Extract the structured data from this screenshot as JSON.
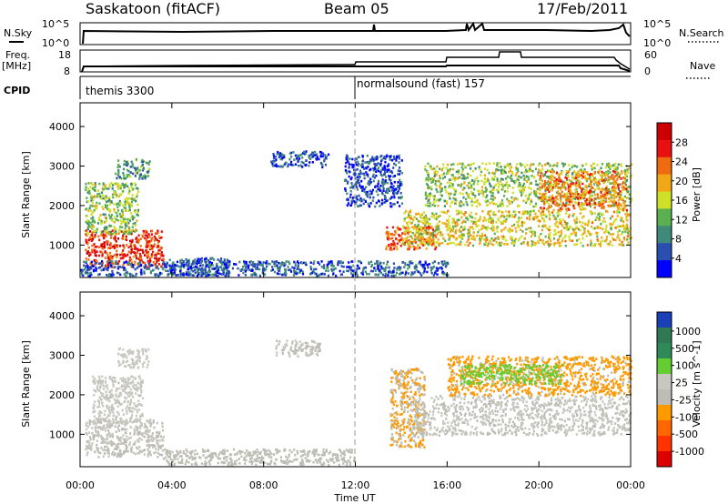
{
  "header": {
    "station": "Saskatoon (fitACF)",
    "beam": "Beam 05",
    "date": "17/Feb/2011"
  },
  "sky_panel": {
    "left_label": "N.Sky",
    "left_ticks": [
      "10^5",
      "10^0"
    ],
    "right_label": "N.Search",
    "right_ticks": [
      "10^5",
      "10^0"
    ]
  },
  "freq_panel": {
    "left_label_1": "Freq.",
    "left_label_2": "[MHz]",
    "left_ticks": [
      "18",
      "8"
    ],
    "right_label": "Nave",
    "right_ticks": [
      "60",
      "0"
    ]
  },
  "cpid": {
    "label": "CPID",
    "segments": [
      {
        "name": "themis 3300",
        "start_hour": 0
      },
      {
        "name": "normalsound (fast) 157",
        "start_hour": 12
      }
    ]
  },
  "colors": {
    "power": [
      "#0000ff",
      "#2a4fb0",
      "#3f8a78",
      "#5ab050",
      "#cfe028",
      "#f0a818",
      "#f06a10",
      "#e81010",
      "#cc0000"
    ],
    "velocity": [
      "#1a3fb8",
      "#2f7a55",
      "#2e8b57",
      "#66cc33",
      "#c8c8c0",
      "#bdbdb5",
      "#ff9900",
      "#ff6600",
      "#ff3300",
      "#dd0000"
    ]
  },
  "chart_data": [
    {
      "type": "heatmap",
      "title": "Power",
      "ylabel": "Slant Range [km]",
      "xlabel": "Time UT",
      "x_ticks": [
        "00:00",
        "04:00",
        "08:00",
        "12:00",
        "16:00",
        "20:00",
        "00:00"
      ],
      "xlim_hours": [
        0,
        24
      ],
      "y_ticks": [
        "1000",
        "2000",
        "3000",
        "4000"
      ],
      "ylim_km": [
        180,
        4600
      ],
      "colorbar": {
        "label": "Power [dB]",
        "ticks": [
          "4",
          "8",
          "12",
          "16",
          "20",
          "24",
          "28"
        ],
        "range": [
          0,
          32
        ]
      },
      "regions": [
        {
          "t0": 0.2,
          "t1": 3.6,
          "r0": 450,
          "r1": 1400,
          "value": 26
        },
        {
          "t0": 0.2,
          "t1": 2.5,
          "r0": 1300,
          "r1": 2600,
          "value": 14
        },
        {
          "t0": 1.5,
          "t1": 3.0,
          "r0": 2700,
          "r1": 3200,
          "value": 10
        },
        {
          "t0": 3.6,
          "t1": 6.5,
          "r0": 250,
          "r1": 700,
          "value": 6
        },
        {
          "t0": 8.3,
          "t1": 10.8,
          "r0": 3000,
          "r1": 3400,
          "value": 5
        },
        {
          "t0": 11.5,
          "t1": 14.0,
          "r0": 2000,
          "r1": 3300,
          "value": 5
        },
        {
          "t0": 13.3,
          "t1": 15.5,
          "r0": 900,
          "r1": 1500,
          "value": 23
        },
        {
          "t0": 14.0,
          "t1": 24.0,
          "r0": 1000,
          "r1": 1900,
          "value": 17
        },
        {
          "t0": 15.0,
          "t1": 24.0,
          "r0": 2000,
          "r1": 3100,
          "value": 14
        },
        {
          "t0": 20.0,
          "t1": 23.8,
          "r0": 1900,
          "r1": 2900,
          "value": 22
        },
        {
          "t0": 0.0,
          "t1": 16.0,
          "r0": 250,
          "r1": 620,
          "value": 6
        }
      ]
    },
    {
      "type": "heatmap",
      "title": "Velocity",
      "ylabel": "Slant Range [km]",
      "xlabel": "Time UT",
      "x_ticks": [
        "00:00",
        "04:00",
        "08:00",
        "12:00",
        "16:00",
        "20:00",
        "00:00"
      ],
      "xlim_hours": [
        0,
        24
      ],
      "y_ticks": [
        "1000",
        "2000",
        "3000",
        "4000"
      ],
      "ylim_km": [
        180,
        4600
      ],
      "colorbar": {
        "label": "Velocity [m s^-1]",
        "ticks": [
          "1000",
          "500",
          "100",
          "25",
          "-25",
          "-100",
          "-500",
          "-1000"
        ],
        "range": [
          -1200,
          1200
        ]
      },
      "regions": [
        {
          "t0": 0.2,
          "t1": 3.6,
          "r0": 450,
          "r1": 1400,
          "value": -5
        },
        {
          "t0": 0.5,
          "t1": 2.7,
          "r0": 1300,
          "r1": 2500,
          "value": 60
        },
        {
          "t0": 1.6,
          "t1": 3.0,
          "r0": 2700,
          "r1": 3200,
          "value": 80
        },
        {
          "t0": 3.6,
          "t1": 12.0,
          "r0": 250,
          "r1": 650,
          "value": -120
        },
        {
          "t0": 8.5,
          "t1": 10.5,
          "r0": 3000,
          "r1": 3400,
          "value": -10
        },
        {
          "t0": 13.5,
          "t1": 15.0,
          "r0": 700,
          "r1": 2700,
          "value": -250
        },
        {
          "t0": 14.5,
          "t1": 24.0,
          "r0": 1000,
          "r1": 2000,
          "value": 0
        },
        {
          "t0": 16.0,
          "t1": 24.0,
          "r0": 2000,
          "r1": 3000,
          "value": -300
        },
        {
          "t0": 16.5,
          "t1": 21.0,
          "r0": 2300,
          "r1": 2800,
          "value": 300
        }
      ]
    }
  ]
}
